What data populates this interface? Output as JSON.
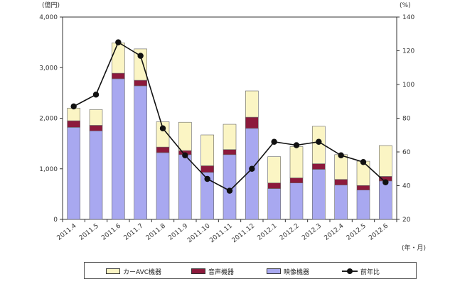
{
  "chart_data": {
    "type": "bar",
    "stacked": true,
    "left_axis_unit": "(億円)",
    "right_axis_unit": "(%)",
    "x_axis_unit": "(年・月)",
    "categories": [
      "2011.4",
      "2011.5",
      "2011.6",
      "2011.7",
      "2011.8",
      "2011.9",
      "2011.10",
      "2011.11",
      "2011.12",
      "2012.1",
      "2012.2",
      "2012.3",
      "2012.4",
      "2012.5",
      "2012.6"
    ],
    "ylim": [
      0,
      4000
    ],
    "yticks": [
      "0",
      "1,000",
      "2,000",
      "3,000",
      "4,000"
    ],
    "y2lim": [
      20,
      140
    ],
    "y2ticks": [
      "20",
      "40",
      "60",
      "80",
      "100",
      "120",
      "140"
    ],
    "series": [
      {
        "name": "映像機器",
        "color": "#a8a8f0",
        "values": [
          1820,
          1750,
          2780,
          2640,
          1320,
          1280,
          930,
          1280,
          1800,
          610,
          720,
          990,
          680,
          580,
          760
        ]
      },
      {
        "name": "音声機器",
        "color": "#8c1a3c",
        "values": [
          130,
          110,
          110,
          110,
          110,
          80,
          130,
          100,
          220,
          110,
          100,
          110,
          110,
          90,
          90
        ]
      },
      {
        "name": "カーAVC機器",
        "color": "#fbf5c4",
        "values": [
          250,
          310,
          600,
          620,
          500,
          560,
          610,
          500,
          520,
          520,
          620,
          740,
          490,
          480,
          610
        ]
      }
    ],
    "line_series": {
      "name": "前年比",
      "axis": "right",
      "color": "#111111",
      "values": [
        87,
        94,
        125,
        117,
        74,
        58,
        44,
        37,
        50,
        66,
        64,
        66,
        58,
        54,
        42
      ]
    },
    "legend": [
      "カーAVC機器",
      "音声機器",
      "映像機器",
      "前年比"
    ],
    "legend_position": "bottom"
  }
}
